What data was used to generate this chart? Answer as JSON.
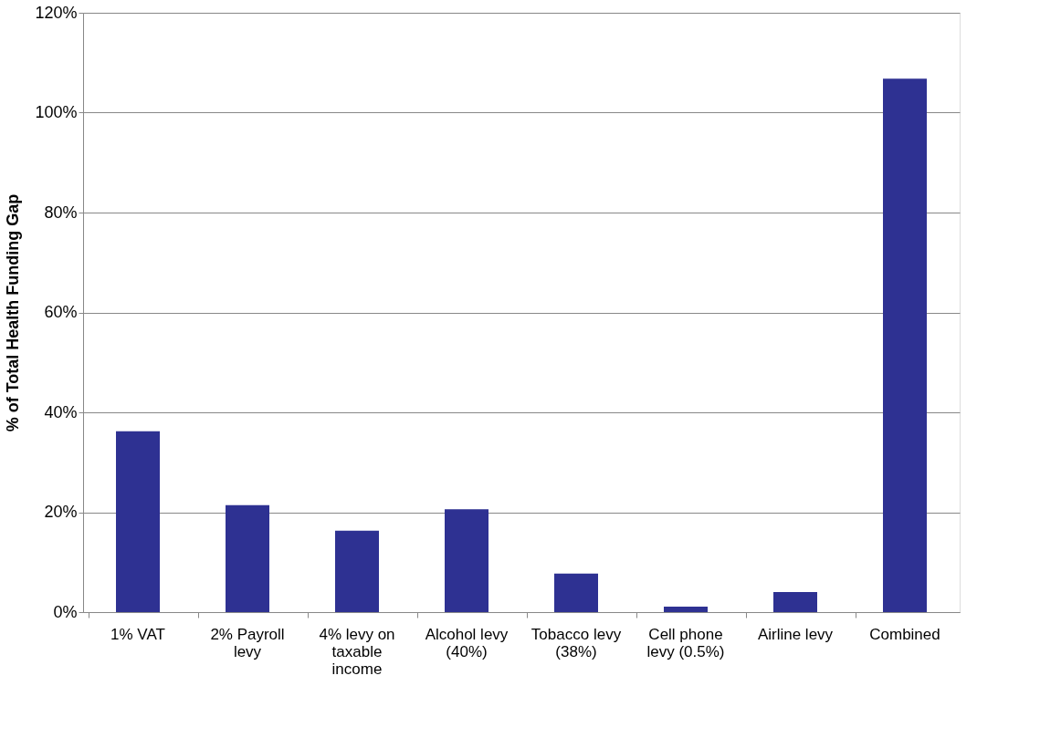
{
  "chart_data": {
    "type": "bar",
    "ylabel": "% of Total Health Funding Gap",
    "categories": [
      "1% VAT",
      "2% Payroll levy",
      "4% levy on taxable income",
      "Alcohol levy (40%)",
      "Tobacco levy (38%)",
      "Cell phone levy (0.5%)",
      "Airline levy",
      "Combined"
    ],
    "values": [
      36.2,
      21.4,
      16.3,
      20.6,
      7.7,
      1.1,
      4.0,
      106.8
    ],
    "color": "#2e3192",
    "ylim": [
      0,
      120
    ],
    "yticks": [
      {
        "value": 0,
        "label": "0%"
      },
      {
        "value": 20,
        "label": "20%"
      },
      {
        "value": 40,
        "label": "40%"
      },
      {
        "value": 60,
        "label": "60%"
      },
      {
        "value": 80,
        "label": "80%"
      },
      {
        "value": 100,
        "label": "100%"
      },
      {
        "value": 120,
        "label": "120%"
      }
    ],
    "grid": "y"
  }
}
